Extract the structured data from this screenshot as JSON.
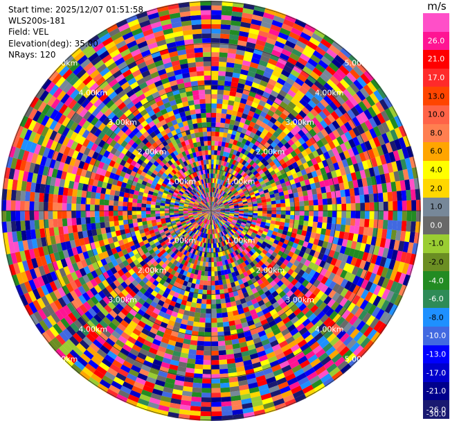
{
  "info": {
    "start_time": "Start time: 2025/12/07 01:51:58",
    "instrument": "WLS200s-181",
    "field": "Field: VEL",
    "elevation": "Elevation(deg): 35.00",
    "nrays": "NRays: 120"
  },
  "colorbar": {
    "unit": "m/s",
    "levels": [
      {
        "label": "",
        "color": "#ff4fc8"
      },
      {
        "label": "26.0",
        "color": "#ff1493"
      },
      {
        "label": "21.0",
        "color": "#ff0000"
      },
      {
        "label": "17.0",
        "color": "#ff2a2a"
      },
      {
        "label": "13.0",
        "color": "#ff4500"
      },
      {
        "label": "10.0",
        "color": "#ff6347"
      },
      {
        "label": "8.0",
        "color": "#ff7f50"
      },
      {
        "label": "6.0",
        "color": "#ffa500"
      },
      {
        "label": "4.0",
        "color": "#ffff00"
      },
      {
        "label": "2.0",
        "color": "#ffd700"
      },
      {
        "label": "1.0",
        "color": "#778899"
      },
      {
        "label": "0.0",
        "color": "#696969"
      },
      {
        "label": "-1.0",
        "color": "#9acd32"
      },
      {
        "label": "-2.0",
        "color": "#6b8e23"
      },
      {
        "label": "-4.0",
        "color": "#228b22"
      },
      {
        "label": "-6.0",
        "color": "#2e8b57"
      },
      {
        "label": "-8.0",
        "color": "#1e90ff"
      },
      {
        "label": "-10.0",
        "color": "#4169e1"
      },
      {
        "label": "-13.0",
        "color": "#0000ff"
      },
      {
        "label": "-17.0",
        "color": "#0000cd"
      },
      {
        "label": "-21.0",
        "color": "#00008b"
      },
      {
        "label": "-26.0",
        "color": "#191970"
      },
      {
        "label": "-30.0",
        "color": ""
      }
    ]
  },
  "chart_data": {
    "type": "heatmap",
    "projection": "polar (PPI scan)",
    "field": "VEL",
    "nrays": 120,
    "elevation_deg": 35.0,
    "range_ring_labels": [
      "1.00km",
      "2.00km",
      "3.00km",
      "4.00km",
      "5.00km"
    ],
    "values_range": [
      -30.0,
      30.0
    ],
    "note_palette": "ff4fc8,ff1493,ff0000,ff2a2a,ff4500,ff6347,ff7f50,ffa500,ffff00,ffd700,778899,696969,9acd32,6b8e23,228b22,2e8b57,1e90ff,4169e1,0000ff,0000cd,00008b,191970"
  }
}
